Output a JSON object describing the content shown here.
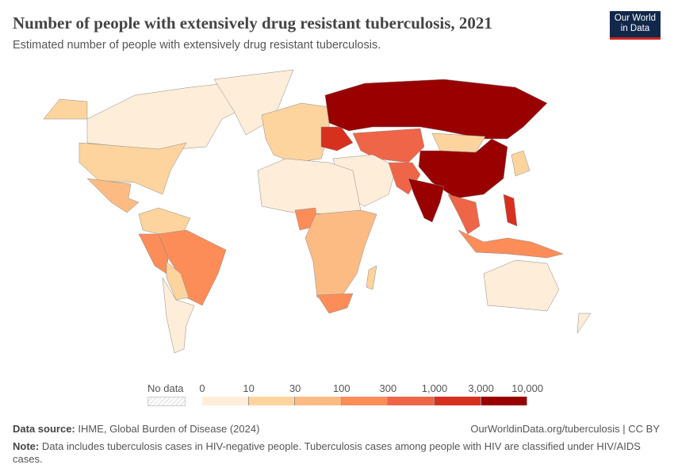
{
  "header": {
    "title": "Number of people with extensively drug resistant tuberculosis, 2021",
    "subtitle": "Estimated number of people with extensively drug resistant tuberculosis.",
    "logo_line1": "Our World",
    "logo_line2": "in Data"
  },
  "legend": {
    "no_data_label": "No data",
    "ticks": [
      "0",
      "10",
      "30",
      "100",
      "300",
      "1,000",
      "3,000",
      "10,000"
    ],
    "colors": [
      "#feedd8",
      "#fdd49e",
      "#fdbb84",
      "#fc8d59",
      "#ef6548",
      "#d7301f",
      "#990000"
    ],
    "no_data_color": "#dddddd"
  },
  "footer": {
    "source_label": "Data source:",
    "source_text": "IHME, Global Burden of Disease (2024)",
    "url_text": "OurWorldinData.org/tuberculosis | CC BY",
    "note_label": "Note:",
    "note_text": "Data includes tuberculosis cases in HIV-negative people. Tuberculosis cases among people with HIV are classified under HIV/AIDS cases."
  }
}
